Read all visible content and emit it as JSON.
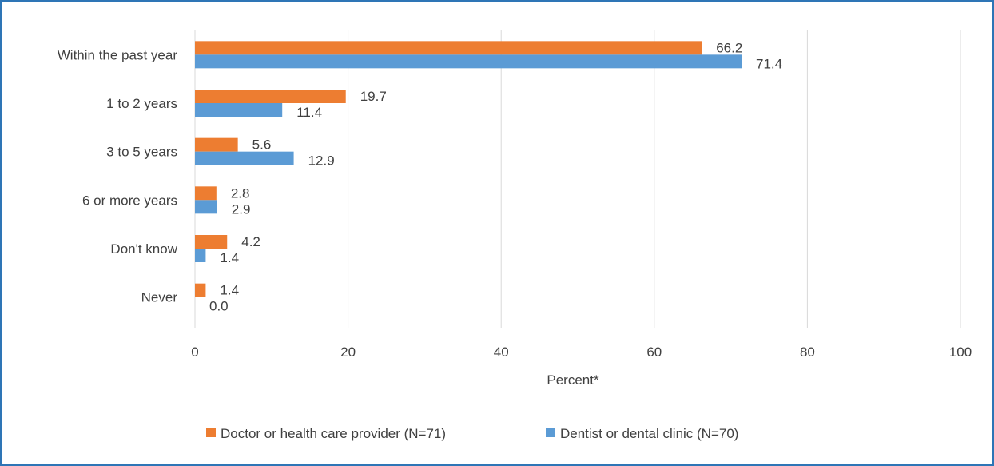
{
  "chart_data": {
    "type": "bar",
    "orientation": "horizontal",
    "categories": [
      "Within the past year",
      "1 to 2 years",
      "3 to 5 years",
      "6 or more years",
      "Don't know",
      "Never"
    ],
    "series": [
      {
        "name": "Doctor or health care provider (N=71)",
        "color": "#ED7D31",
        "values": [
          66.2,
          19.7,
          5.6,
          2.8,
          4.2,
          1.4
        ],
        "labels": [
          "66.2",
          "19.7",
          "5.6",
          "2.8",
          "4.2",
          "1.4"
        ]
      },
      {
        "name": "Dentist or dental clinic (N=70)",
        "color": "#5B9BD5",
        "values": [
          71.4,
          11.4,
          12.9,
          2.9,
          1.4,
          0.0
        ],
        "labels": [
          "71.4",
          "11.4",
          "12.9",
          "2.9",
          "1.4",
          "0.0"
        ]
      }
    ],
    "xlabel": "Percent*",
    "xlim": [
      0,
      100
    ],
    "xticks": [
      "0",
      "20",
      "40",
      "60",
      "80",
      "100"
    ],
    "grid": true,
    "legend_position": "bottom",
    "border_color": "#2E75B6"
  }
}
